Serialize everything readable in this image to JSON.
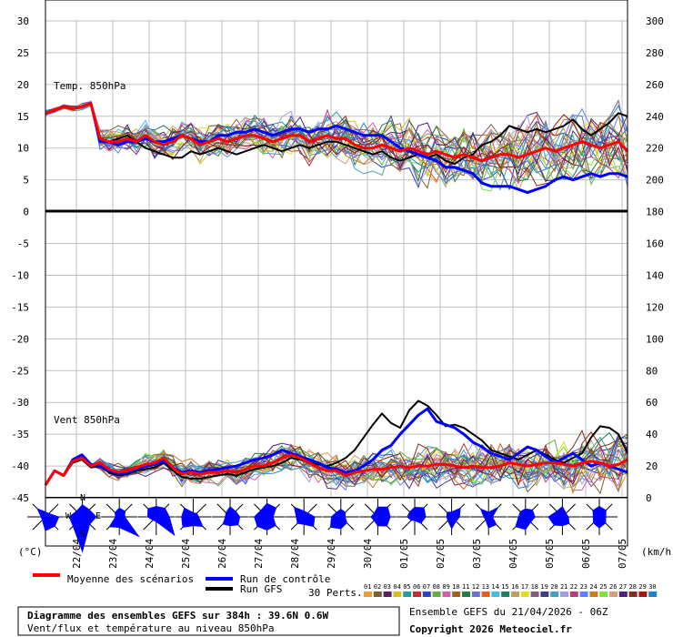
{
  "chart_data": {
    "type": "line",
    "title": "Diagramme des ensembles GEFS sur 384h : 39.6N 0.6W",
    "subtitle": "Vent/flux et température au niveau 850hPa",
    "run_info": "Ensemble GEFS du 21/04/2026 - 06Z",
    "copyright": "Copyright 2026 Meteociel.fr",
    "left_unit": "(°C)",
    "right_unit": "(km/h)",
    "left_ticks": [
      "30",
      "25",
      "20",
      "15",
      "10",
      "5",
      "0",
      "-5",
      "-10",
      "-15",
      "-20",
      "-25",
      "-30",
      "-35",
      "-40",
      "-45"
    ],
    "right_ticks": [
      "300",
      "280",
      "260",
      "240",
      "220",
      "200",
      "180",
      "160",
      "140",
      "120",
      "100",
      "80",
      "60",
      "40",
      "20",
      "0"
    ],
    "x_ticks": [
      "22/04",
      "23/04",
      "24/04",
      "25/04",
      "26/04",
      "27/04",
      "28/04",
      "29/04",
      "30/04",
      "01/05",
      "02/05",
      "03/05",
      "04/05",
      "05/05",
      "06/05",
      "07/05"
    ],
    "panels": [
      {
        "label": "Temp. 850hPa",
        "unit": "°C",
        "x_hours": [
          0,
          6,
          12,
          18,
          24,
          30,
          36,
          42,
          48,
          54,
          60,
          66,
          72,
          78,
          84,
          90,
          96,
          102,
          108,
          114,
          120,
          126,
          132,
          138,
          144,
          150,
          156,
          162,
          168,
          174,
          180,
          186,
          192,
          198,
          204,
          210,
          216,
          222,
          228,
          234,
          240,
          246,
          252,
          258,
          264,
          270,
          276,
          282,
          288,
          294,
          300,
          306,
          312,
          318,
          324,
          330,
          336,
          342,
          348,
          354,
          360,
          366,
          372,
          378,
          384
        ],
        "mean": [
          15.5,
          16,
          16.5,
          16.2,
          16.5,
          17,
          11.5,
          11,
          11,
          11.5,
          11,
          12,
          11,
          10.5,
          11,
          12,
          11.5,
          10.5,
          11,
          11.5,
          11,
          11.5,
          12,
          12,
          11.5,
          11,
          11.5,
          12,
          12,
          11,
          11.5,
          12,
          11.5,
          11.5,
          10.5,
          10,
          10,
          10.5,
          10,
          9.5,
          10,
          9.5,
          9,
          9.5,
          9,
          8.5,
          9,
          8.5,
          8,
          8.5,
          9,
          9,
          8.5,
          9,
          9.5,
          10,
          9.5,
          10,
          10.5,
          11,
          10.5,
          10,
          10.5,
          11,
          9.5
        ],
        "control": [
          15.5,
          16,
          16.5,
          16.2,
          16.5,
          17,
          11,
          11,
          10.5,
          11,
          11,
          11.5,
          11,
          11,
          11.5,
          12,
          11.5,
          11,
          11,
          12,
          12,
          12.5,
          12.5,
          13,
          12.5,
          12,
          12.5,
          13,
          13,
          12.5,
          13,
          13,
          13.5,
          13,
          12.5,
          12,
          12,
          12,
          11,
          10,
          9.5,
          9,
          8.5,
          8,
          7,
          7,
          6.5,
          6,
          4.5,
          4,
          4,
          4,
          3.5,
          3,
          3.5,
          4,
          5,
          5.5,
          5,
          5.5,
          6,
          5.5,
          6,
          6,
          5.5
        ],
        "gfs": [
          15.5,
          16,
          16.5,
          16.2,
          16.5,
          17,
          11,
          11,
          11.5,
          12,
          11,
          10,
          9.5,
          9,
          8.5,
          8.5,
          9.5,
          9,
          9.5,
          10,
          9.5,
          9,
          9.5,
          10,
          10.5,
          10,
          9.5,
          10,
          10.5,
          10,
          10.5,
          11,
          11,
          10.5,
          10,
          9.5,
          9,
          9.5,
          8.5,
          8,
          8.5,
          9,
          8.5,
          9,
          8,
          7.5,
          8.5,
          9,
          10.5,
          11,
          12,
          13.5,
          13,
          12.5,
          13,
          12.5,
          13,
          13.5,
          14.5,
          13,
          12,
          13,
          14,
          15.5,
          15
        ]
      },
      {
        "label": "Vent 850hPa",
        "unit": "km/h",
        "x_hours": [
          0,
          6,
          12,
          18,
          24,
          30,
          36,
          42,
          48,
          54,
          60,
          66,
          72,
          78,
          84,
          90,
          96,
          102,
          108,
          114,
          120,
          126,
          132,
          138,
          144,
          150,
          156,
          162,
          168,
          174,
          180,
          186,
          192,
          198,
          204,
          210,
          216,
          222,
          228,
          234,
          240,
          246,
          252,
          258,
          264,
          270,
          276,
          282,
          288,
          294,
          300,
          306,
          312,
          318,
          324,
          330,
          336,
          342,
          348,
          354,
          360,
          366,
          372,
          378,
          384
        ],
        "mean": [
          8,
          17,
          14,
          23,
          25,
          20,
          22,
          18,
          16,
          17,
          19,
          21,
          22,
          25,
          19,
          15,
          16,
          15,
          16,
          16,
          17,
          16,
          18,
          20,
          20,
          22,
          25,
          27,
          25,
          22,
          19,
          17,
          17,
          14,
          16,
          17,
          18,
          18,
          19,
          20,
          19,
          20,
          20,
          21,
          21,
          20,
          19,
          20,
          19,
          19,
          20,
          22,
          21,
          20,
          21,
          22,
          22,
          21,
          20,
          22,
          23,
          22,
          20,
          21,
          24
        ],
        "control": [
          8,
          17,
          14,
          24,
          27,
          21,
          20,
          17,
          15,
          16,
          18,
          20,
          21,
          23,
          19,
          16,
          17,
          16,
          17,
          18,
          19,
          20,
          22,
          24,
          25,
          27,
          30,
          28,
          26,
          24,
          22,
          19,
          18,
          16,
          17,
          20,
          24,
          30,
          33,
          40,
          46,
          52,
          56,
          48,
          46,
          44,
          40,
          35,
          32,
          28,
          26,
          24,
          28,
          32,
          30,
          26,
          22,
          25,
          28,
          24,
          20,
          22,
          20,
          18,
          16
        ],
        "gfs": [
          8,
          17,
          14,
          22,
          24,
          19,
          20,
          16,
          14,
          15,
          17,
          18,
          19,
          22,
          17,
          13,
          12,
          12,
          13,
          14,
          15,
          14,
          16,
          18,
          19,
          20,
          22,
          25,
          24,
          22,
          21,
          20,
          22,
          25,
          30,
          38,
          46,
          53,
          47,
          44,
          55,
          61,
          58,
          52,
          45,
          46,
          44,
          40,
          36,
          30,
          28,
          26,
          24,
          27,
          30,
          27,
          24,
          22,
          25,
          28,
          38,
          45,
          44,
          40,
          28
        ]
      }
    ],
    "members": 30,
    "legend": {
      "mean": "Moyenne des scénarios",
      "control": "Run de contrôle",
      "gfs": "Run GFS",
      "perts": "30 Perts.",
      "pert_ids": [
        "01",
        "02",
        "03",
        "04",
        "05",
        "06",
        "07",
        "08",
        "09",
        "10",
        "11",
        "12",
        "13",
        "14",
        "15",
        "16",
        "17",
        "18",
        "19",
        "20",
        "21",
        "22",
        "23",
        "24",
        "25",
        "26",
        "27",
        "28",
        "29",
        "30"
      ]
    },
    "colors": {
      "mean": "#ff0000",
      "control": "#0000ff",
      "gfs": "#000000",
      "grid": "#c0c0c0",
      "roses": "#0000ff",
      "members": [
        "#e8a040",
        "#7a6030",
        "#5a2060",
        "#d4c020",
        "#20a0a0",
        "#c03030",
        "#3040c0",
        "#60b040",
        "#d060b0",
        "#a06020",
        "#208040",
        "#7070d0",
        "#e06020",
        "#40c0e0",
        "#208060",
        "#c0a060",
        "#e0e020",
        "#806080",
        "#404080",
        "#40a0c0",
        "#a0a0e0",
        "#b04080",
        "#6080ff",
        "#c08020",
        "#80e040",
        "#d0a080",
        "#502080",
        "#803020",
        "#a01818",
        "#2080d0"
      ]
    }
  }
}
